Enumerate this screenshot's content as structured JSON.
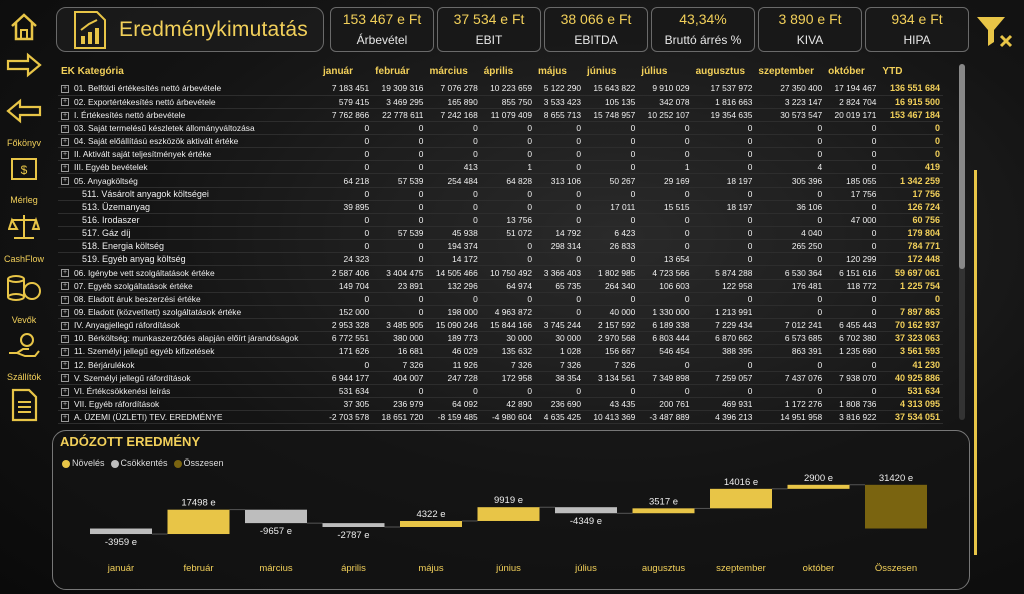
{
  "nav": {
    "labels": [
      "Főkönyv",
      "Mérleg",
      "CashFlow",
      "Vevők",
      "Szállítók"
    ]
  },
  "title": "Eredménykimutatás",
  "kpis": [
    {
      "value": "153 467 e Ft",
      "label": "Árbevétel"
    },
    {
      "value": "37 534 e Ft",
      "label": "EBIT"
    },
    {
      "value": "38 066 e Ft",
      "label": "EBITDA"
    },
    {
      "value": "43,34%",
      "label": "Bruttó árrés %"
    },
    {
      "value": "3 890 e Ft",
      "label": "KIVA"
    },
    {
      "value": "934 e Ft",
      "label": "HIPA"
    }
  ],
  "colors": {
    "accent": "#f2d05a",
    "increase": "#e8c547",
    "decrease": "#bdbdbd",
    "total": "#7a6410"
  },
  "table": {
    "headers": [
      "EK Kategória",
      "január",
      "február",
      "március",
      "április",
      "május",
      "június",
      "július",
      "augusztus",
      "szeptember",
      "október",
      "YTD"
    ],
    "rows": [
      {
        "name": "01. Belföldi értékesítés nettó árbevétele",
        "exp": true,
        "sub": false,
        "vals": [
          "7 183 451",
          "19 309 316",
          "7 076 278",
          "10 223 659",
          "5 122 290",
          "15 643 822",
          "9 910 029",
          "17 537 972",
          "27 350 400",
          "17 194 467"
        ],
        "ytd": "136 551 684"
      },
      {
        "name": "02. Exportértékesítés nettó árbevétele",
        "exp": true,
        "sub": false,
        "vals": [
          "579 415",
          "3 469 295",
          "165 890",
          "855 750",
          "3 533 423",
          "105 135",
          "342 078",
          "1 816 663",
          "3 223 147",
          "2 824 704"
        ],
        "ytd": "16 915 500"
      },
      {
        "name": "I. Értékesítés nettó árbevétele",
        "exp": true,
        "sub": false,
        "vals": [
          "7 762 866",
          "22 778 611",
          "7 242 168",
          "11 079 409",
          "8 655 713",
          "15 748 957",
          "10 252 107",
          "19 354 635",
          "30 573 547",
          "20 019 171"
        ],
        "ytd": "153 467 184"
      },
      {
        "name": "03. Saját termelésű készletek állományváltozása",
        "exp": true,
        "sub": false,
        "vals": [
          "0",
          "0",
          "0",
          "0",
          "0",
          "0",
          "0",
          "0",
          "0",
          "0"
        ],
        "ytd": "0"
      },
      {
        "name": "04. Saját előállítású eszközök aktivált értéke",
        "exp": true,
        "sub": false,
        "vals": [
          "0",
          "0",
          "0",
          "0",
          "0",
          "0",
          "0",
          "0",
          "0",
          "0"
        ],
        "ytd": "0"
      },
      {
        "name": "II. Aktivált saját teljesítmények értéke",
        "exp": true,
        "sub": false,
        "vals": [
          "0",
          "0",
          "0",
          "0",
          "0",
          "0",
          "0",
          "0",
          "0",
          "0"
        ],
        "ytd": "0"
      },
      {
        "name": "III. Egyéb bevételek",
        "exp": true,
        "sub": false,
        "vals": [
          "0",
          "0",
          "413",
          "1",
          "0",
          "0",
          "1",
          "0",
          "4",
          "0"
        ],
        "ytd": "419"
      },
      {
        "name": "05. Anyagköltség",
        "exp": true,
        "sub": false,
        "vals": [
          "64 218",
          "57 539",
          "254 484",
          "64 828",
          "313 106",
          "50 267",
          "29 169",
          "18 197",
          "305 396",
          "185 055"
        ],
        "ytd": "1 342 259"
      },
      {
        "name": "511. Vásárolt anyagok költségei",
        "exp": false,
        "sub": true,
        "vals": [
          "0",
          "0",
          "0",
          "0",
          "0",
          "0",
          "0",
          "0",
          "0",
          "17 756"
        ],
        "ytd": "17 756"
      },
      {
        "name": "513. Üzemanyag",
        "exp": false,
        "sub": true,
        "vals": [
          "39 895",
          "0",
          "0",
          "0",
          "0",
          "17 011",
          "15 515",
          "18 197",
          "36 106",
          "0"
        ],
        "ytd": "126 724"
      },
      {
        "name": "516. Irodaszer",
        "exp": false,
        "sub": true,
        "vals": [
          "0",
          "0",
          "0",
          "13 756",
          "0",
          "0",
          "0",
          "0",
          "0",
          "47 000"
        ],
        "ytd": "60 756"
      },
      {
        "name": "517. Gáz díj",
        "exp": false,
        "sub": true,
        "vals": [
          "0",
          "57 539",
          "45 938",
          "51 072",
          "14 792",
          "6 423",
          "0",
          "0",
          "4 040",
          "0"
        ],
        "ytd": "179 804"
      },
      {
        "name": "518. Energia költség",
        "exp": false,
        "sub": true,
        "vals": [
          "0",
          "0",
          "194 374",
          "0",
          "298 314",
          "26 833",
          "0",
          "0",
          "265 250",
          "0"
        ],
        "ytd": "784 771"
      },
      {
        "name": "519. Egyéb anyag költség",
        "exp": false,
        "sub": true,
        "vals": [
          "24 323",
          "0",
          "14 172",
          "0",
          "0",
          "0",
          "13 654",
          "0",
          "0",
          "120 299"
        ],
        "ytd": "172 448"
      },
      {
        "name": "06. Igénybe vett szolgáltatások értéke",
        "exp": true,
        "sub": false,
        "vals": [
          "2 587 406",
          "3 404 475",
          "14 505 466",
          "10 750 492",
          "3 366 403",
          "1 802 985",
          "4 723 566",
          "5 874 288",
          "6 530 364",
          "6 151 616"
        ],
        "ytd": "59 697 061"
      },
      {
        "name": "07. Egyéb szolgáltatások értéke",
        "exp": true,
        "sub": false,
        "vals": [
          "149 704",
          "23 891",
          "132 296",
          "64 974",
          "65 735",
          "264 340",
          "106 603",
          "122 958",
          "176 481",
          "118 772"
        ],
        "ytd": "1 225 754"
      },
      {
        "name": "08. Eladott áruk beszerzési értéke",
        "exp": true,
        "sub": false,
        "vals": [
          "0",
          "0",
          "0",
          "0",
          "0",
          "0",
          "0",
          "0",
          "0",
          "0"
        ],
        "ytd": "0"
      },
      {
        "name": "09. Eladott (közvetített) szolgáltatások értéke",
        "exp": true,
        "sub": false,
        "vals": [
          "152 000",
          "0",
          "198 000",
          "4 963 872",
          "0",
          "40 000",
          "1 330 000",
          "1 213 991",
          "0",
          "0"
        ],
        "ytd": "7 897 863"
      },
      {
        "name": "IV. Anyagjellegű ráfordítások",
        "exp": true,
        "sub": false,
        "vals": [
          "2 953 328",
          "3 485 905",
          "15 090 246",
          "15 844 166",
          "3 745 244",
          "2 157 592",
          "6 189 338",
          "7 229 434",
          "7 012 241",
          "6 455 443"
        ],
        "ytd": "70 162 937"
      },
      {
        "name": "10. Bérköltség: munkaszerződés alapján előírt járandóságok",
        "exp": true,
        "sub": false,
        "vals": [
          "6 772 551",
          "380 000",
          "189 773",
          "30 000",
          "30 000",
          "2 970 568",
          "6 803 444",
          "6 870 662",
          "6 573 685",
          "6 702 380"
        ],
        "ytd": "37 323 063"
      },
      {
        "name": "11. Személyi jellegű egyéb kifizetések",
        "exp": true,
        "sub": false,
        "vals": [
          "171 626",
          "16 681",
          "46 029",
          "135 632",
          "1 028",
          "156 667",
          "546 454",
          "388 395",
          "863 391",
          "1 235 690"
        ],
        "ytd": "3 561 593"
      },
      {
        "name": "12. Bérjárulékok",
        "exp": true,
        "sub": false,
        "vals": [
          "0",
          "7 326",
          "11 926",
          "7 326",
          "7 326",
          "7 326",
          "0",
          "0",
          "0",
          "0"
        ],
        "ytd": "41 230"
      },
      {
        "name": "V. Személyi jellegű ráfordítások",
        "exp": true,
        "sub": false,
        "vals": [
          "6 944 177",
          "404 007",
          "247 728",
          "172 958",
          "38 354",
          "3 134 561",
          "7 349 898",
          "7 259 057",
          "7 437 076",
          "7 938 070"
        ],
        "ytd": "40 925 886"
      },
      {
        "name": "VI. Értékcsökkenési leírás",
        "exp": true,
        "sub": false,
        "vals": [
          "531 634",
          "0",
          "0",
          "0",
          "0",
          "0",
          "0",
          "0",
          "0",
          "0"
        ],
        "ytd": "531 634"
      },
      {
        "name": "VII. Egyéb ráfordítások",
        "exp": true,
        "sub": false,
        "vals": [
          "37 305",
          "236 979",
          "64 092",
          "42 890",
          "236 690",
          "43 435",
          "200 761",
          "469 931",
          "1 172 276",
          "1 808 736"
        ],
        "ytd": "4 313 095"
      },
      {
        "name": "A. ÜZEMI (ÜZLETI) TEV. EREDMÉNYE",
        "exp": true,
        "sub": false,
        "vals": [
          "-2 703 578",
          "18 651 720",
          "-8 159 485",
          "-4 980 604",
          "4 635 425",
          "10 413 369",
          "-3 487 889",
          "4 396 213",
          "14 951 958",
          "3 816 922"
        ],
        "ytd": "37 534 051"
      }
    ]
  },
  "chart_title": "ADÓZOTT EREDMÉNY",
  "legend": [
    {
      "label": "Növelés",
      "color": "#e8c547"
    },
    {
      "label": "Csökkentés",
      "color": "#bdbdbd"
    },
    {
      "label": "Összesen",
      "color": "#7a6410"
    }
  ],
  "chart_data": {
    "type": "waterfall",
    "title": "ADÓZOTT EREDMÉNY",
    "categories": [
      "január",
      "február",
      "március",
      "április",
      "május",
      "június",
      "július",
      "augusztus",
      "szeptember",
      "október",
      "Összesen"
    ],
    "values": [
      -3959,
      17498,
      -9657,
      -2787,
      4322,
      9919,
      -4349,
      3517,
      14016,
      2900,
      31420
    ],
    "labels": [
      "-3959 e",
      "17498 e",
      "-9657 e",
      "-2787 e",
      "4322 e",
      "9919 e",
      "-4349 e",
      "3517 e",
      "14016 e",
      "2900 e",
      "31420 e"
    ],
    "legend": [
      "Növelés",
      "Csökkentés",
      "Összesen"
    ]
  }
}
